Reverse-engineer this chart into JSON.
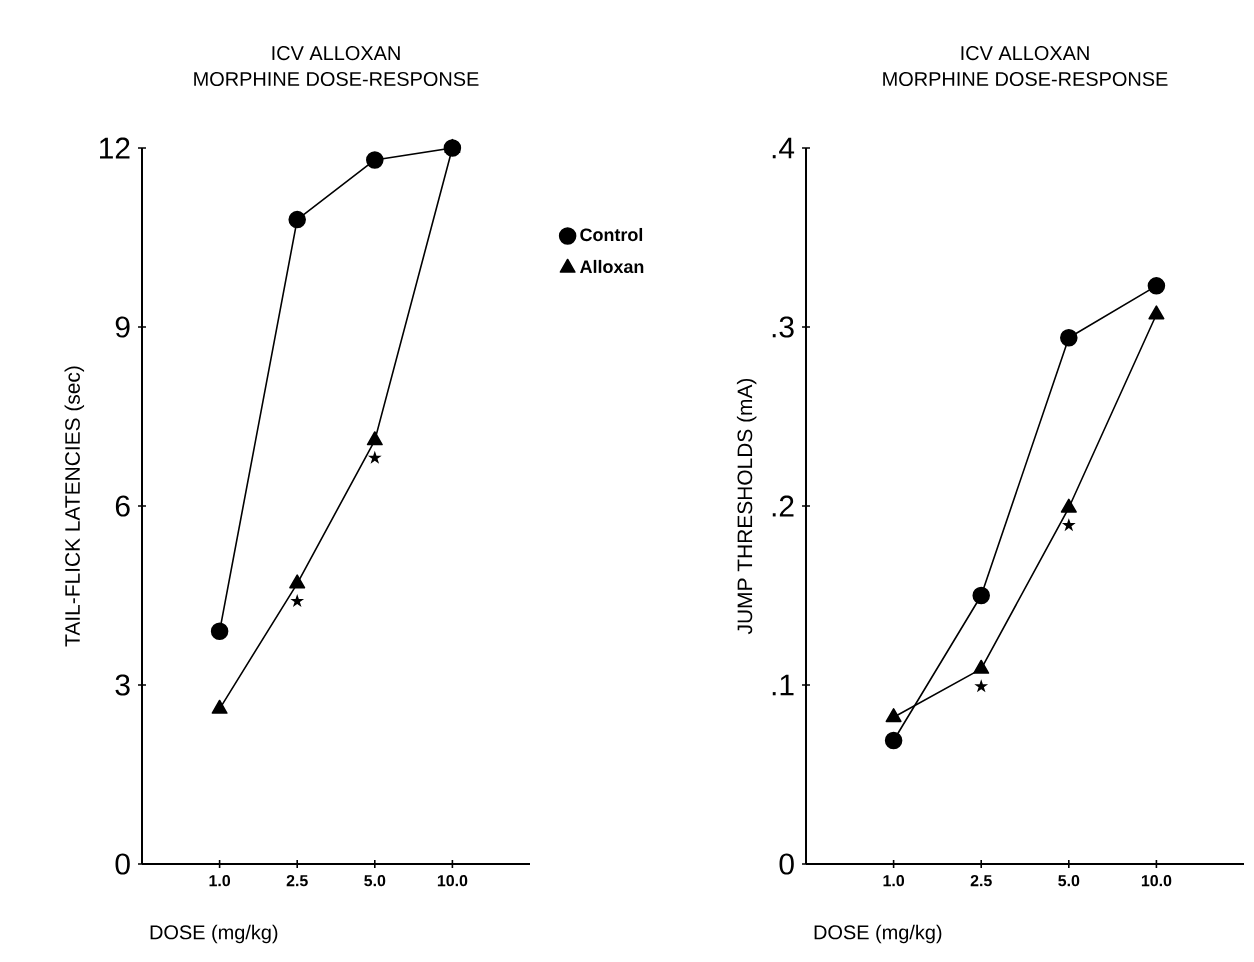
{
  "chart_data": [
    {
      "type": "line",
      "title": "ICV ALLOXAN",
      "subtitle": "MORPHINE DOSE-RESPONSE",
      "xlabel": "DOSE (mg/kg)",
      "ylabel": "TAIL-FLICK LATENCIES (sec)",
      "categories": [
        "1.0",
        "2.5",
        "5.0",
        "10.0"
      ],
      "series": [
        {
          "name": "Control",
          "color": "#000000",
          "marker": "circle",
          "values": [
            3.9,
            10.8,
            11.8,
            12.0
          ]
        },
        {
          "name": "Alloxan",
          "color": "#000000",
          "marker": "triangle",
          "values": [
            2.6,
            4.7,
            7.1,
            12.0
          ]
        }
      ],
      "ylim": [
        0,
        12
      ],
      "yticks": [
        0,
        3,
        6,
        9,
        12
      ],
      "legend": "right",
      "grid": false,
      "annotations": [
        {
          "text": "★",
          "x": "2.5",
          "y": 4.7
        },
        {
          "text": "★",
          "x": "5.0",
          "y": 7.1
        }
      ]
    },
    {
      "type": "line",
      "title": "ICV ALLOXAN",
      "subtitle": "MORPHINE DOSE-RESPONSE",
      "xlabel": "DOSE (mg/kg)",
      "ylabel": "JUMP THRESHOLDS (mA)",
      "categories": [
        "1.0",
        "2.5",
        "5.0",
        "10.0"
      ],
      "series": [
        {
          "color": "#000000",
          "marker": "circle",
          "values": [
            0.069,
            0.15,
            0.294,
            0.323
          ]
        },
        {
          "color": "#000000",
          "marker": "triangle",
          "values": [
            0.082,
            0.109,
            0.199,
            0.307
          ]
        }
      ],
      "ylim": [
        0,
        0.4
      ],
      "yticks": [
        0,
        {
          "value": 0.1,
          "label": ".1"
        },
        {
          "value": 0.2,
          "label": ".2"
        },
        {
          "value": 0.3,
          "label": ".3"
        },
        {
          "value": 0.4,
          "label": ".4"
        }
      ],
      "grid": false,
      "annotations": [
        {
          "text": "★",
          "x": "2.5",
          "y": 0.109
        },
        {
          "text": "★",
          "x": "5.0",
          "y": 0.199
        }
      ]
    }
  ]
}
